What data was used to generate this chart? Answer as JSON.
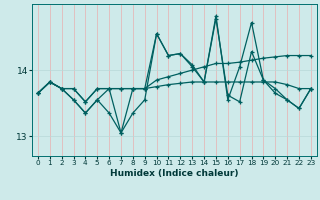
{
  "xlabel": "Humidex (Indice chaleur)",
  "bg_color": "#ceeaea",
  "grid_color_v": "#e8b0b0",
  "grid_color_h": "#b8d8d8",
  "line_color": "#006060",
  "x_data": [
    0,
    1,
    2,
    3,
    4,
    5,
    6,
    7,
    8,
    9,
    10,
    11,
    12,
    13,
    14,
    15,
    16,
    17,
    18,
    19,
    20,
    21,
    22,
    23
  ],
  "series1": [
    13.65,
    13.82,
    13.72,
    13.72,
    13.52,
    13.72,
    13.72,
    13.72,
    13.72,
    13.72,
    13.85,
    13.9,
    13.95,
    14.0,
    14.05,
    14.1,
    14.1,
    14.12,
    14.15,
    14.18,
    14.2,
    14.22,
    14.22,
    14.22
  ],
  "series2": [
    13.65,
    13.82,
    13.72,
    13.72,
    13.52,
    13.72,
    13.72,
    13.72,
    13.72,
    13.72,
    13.75,
    13.78,
    13.8,
    13.82,
    13.82,
    13.82,
    13.82,
    13.82,
    13.82,
    13.82,
    13.82,
    13.78,
    13.72,
    13.72
  ],
  "series3": [
    13.65,
    13.82,
    13.72,
    13.55,
    13.35,
    13.55,
    13.72,
    13.05,
    13.72,
    13.72,
    14.55,
    14.22,
    14.25,
    14.05,
    13.82,
    14.82,
    13.55,
    14.05,
    14.72,
    13.85,
    13.72,
    13.55,
    13.42,
    13.72
  ],
  "series4": [
    13.65,
    13.82,
    13.72,
    13.55,
    13.35,
    13.55,
    13.35,
    13.05,
    13.35,
    13.55,
    14.55,
    14.22,
    14.25,
    14.08,
    13.82,
    14.78,
    13.62,
    13.52,
    14.28,
    13.85,
    13.65,
    13.55,
    13.42,
    13.72
  ],
  "ylim": [
    12.7,
    15.0
  ],
  "yticks": [
    13,
    14
  ],
  "xlim": [
    -0.5,
    23.5
  ],
  "xticks": [
    0,
    1,
    2,
    3,
    4,
    5,
    6,
    7,
    8,
    9,
    10,
    11,
    12,
    13,
    14,
    15,
    16,
    17,
    18,
    19,
    20,
    21,
    22,
    23
  ],
  "title_fontsize": 6.5
}
